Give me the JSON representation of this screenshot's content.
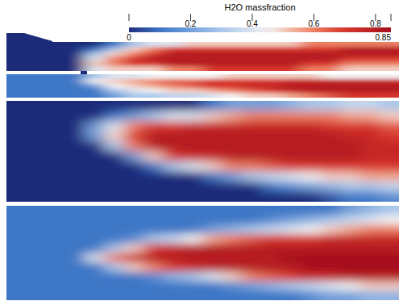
{
  "chart_data": {
    "type": "heatmap",
    "title": "H2O massfraction",
    "tick_labels": false,
    "colorbar_range": [
      0,
      0.85
    ],
    "colorbar_ticks": [
      0,
      0.2,
      0.4,
      0.6,
      0.8,
      0.85
    ],
    "panels": [
      {
        "cells": [
          [
            0,
            0,
            0,
            0,
            0,
            0.1,
            0.3,
            0.4,
            0.4,
            0.5,
            0.5,
            0.5,
            0.5,
            0.5,
            0.5,
            0.6,
            0.6,
            0.6,
            0.6,
            0.6
          ],
          [
            0,
            0,
            0,
            0,
            0.1,
            0.3,
            0.5,
            0.6,
            0.7,
            0.7,
            0.7,
            0.7,
            0.7,
            0.7,
            0.7,
            0.7,
            0.7,
            0.8,
            0.8,
            0.8
          ],
          [
            0,
            0,
            0,
            0,
            0.3,
            0.5,
            0.6,
            0.7,
            0.8,
            0.8,
            0.8,
            0.8,
            0.8,
            0.8,
            0.8,
            0.8,
            0.8,
            0.8,
            0.8,
            0.8
          ],
          [
            0,
            0,
            0,
            0,
            0.4,
            0.6,
            0.7,
            0.8,
            0.8,
            0.8,
            0.8,
            0.8,
            0.8,
            0.8,
            0.8,
            0.8,
            0.8,
            0.7,
            0.7,
            0.7
          ],
          [
            0,
            0,
            0,
            0,
            0.5,
            0.6,
            0.7,
            0.7,
            0.8,
            0.8,
            0.8,
            0.8,
            0.8,
            0.8,
            0.8,
            0.7,
            0.7,
            0.6,
            0.6,
            0.6
          ],
          [
            0,
            0,
            0,
            0,
            0.4,
            0.5,
            0.5,
            0.5,
            0.6,
            0.6,
            0.7,
            0.7,
            0.7,
            0.7,
            0.7,
            0.6,
            0.6,
            0.5,
            0.5,
            0.5
          ]
        ]
      },
      {
        "cells": [
          [
            0.1,
            0.1,
            0.1,
            0.1,
            0.3,
            0.4,
            0.4,
            0.45,
            0.45,
            0.45,
            0.45,
            0.5,
            0.5,
            0.5,
            0.5,
            0.5,
            0.45,
            0.45,
            0.45,
            0.45
          ],
          [
            0.1,
            0.1,
            0.1,
            0.1,
            0.45,
            0.5,
            0.55,
            0.6,
            0.65,
            0.65,
            0.7,
            0.7,
            0.7,
            0.7,
            0.75,
            0.75,
            0.75,
            0.75,
            0.75,
            0.75
          ],
          [
            0.1,
            0.1,
            0.1,
            0.1,
            0.2,
            0.45,
            0.5,
            0.55,
            0.6,
            0.65,
            0.7,
            0.7,
            0.75,
            0.75,
            0.8,
            0.8,
            0.8,
            0.8,
            0.8,
            0.8
          ],
          [
            0.1,
            0.1,
            0.1,
            0.1,
            0.1,
            0.3,
            0.4,
            0.45,
            0.5,
            0.5,
            0.55,
            0.6,
            0.65,
            0.7,
            0.75,
            0.8,
            0.8,
            0.8,
            0.8,
            0.8
          ],
          [
            0.1,
            0.1,
            0.1,
            0.1,
            0.1,
            0.2,
            0.3,
            0.3,
            0.35,
            0.35,
            0.4,
            0.45,
            0.5,
            0.5,
            0.55,
            0.6,
            0.65,
            0.7,
            0.7,
            0.7
          ]
        ]
      },
      {
        "cells": [
          [
            0,
            0,
            0,
            0,
            0,
            0,
            0,
            0,
            0,
            0,
            0.1,
            0.2,
            0.2,
            0.2,
            0.25,
            0.3,
            0.3,
            0.35,
            0.35,
            0.3
          ],
          [
            0,
            0,
            0,
            0,
            0,
            0.1,
            0.2,
            0.3,
            0.4,
            0.4,
            0.5,
            0.55,
            0.6,
            0.6,
            0.6,
            0.6,
            0.6,
            0.55,
            0.55,
            0.5
          ],
          [
            0,
            0,
            0,
            0,
            0.2,
            0.4,
            0.6,
            0.7,
            0.7,
            0.75,
            0.75,
            0.75,
            0.75,
            0.75,
            0.75,
            0.75,
            0.7,
            0.7,
            0.7,
            0.65
          ],
          [
            0,
            0,
            0,
            0,
            0.2,
            0.5,
            0.7,
            0.8,
            0.8,
            0.8,
            0.8,
            0.8,
            0.8,
            0.8,
            0.8,
            0.8,
            0.8,
            0.75,
            0.75,
            0.7
          ],
          [
            0,
            0,
            0,
            0,
            0,
            0.3,
            0.6,
            0.8,
            0.8,
            0.8,
            0.8,
            0.8,
            0.8,
            0.8,
            0.8,
            0.8,
            0.8,
            0.8,
            0.75,
            0.75
          ],
          [
            0,
            0,
            0,
            0,
            0,
            0,
            0.2,
            0.5,
            0.7,
            0.75,
            0.75,
            0.8,
            0.8,
            0.8,
            0.8,
            0.8,
            0.8,
            0.8,
            0.75,
            0.75
          ],
          [
            0,
            0,
            0,
            0,
            0,
            0,
            0,
            0.1,
            0.3,
            0.4,
            0.5,
            0.6,
            0.6,
            0.65,
            0.7,
            0.7,
            0.7,
            0.7,
            0.7,
            0.7
          ],
          [
            0,
            0,
            0,
            0,
            0,
            0,
            0,
            0,
            0,
            0,
            0.1,
            0.2,
            0.3,
            0.35,
            0.4,
            0.45,
            0.5,
            0.5,
            0.55,
            0.55
          ],
          [
            0,
            0,
            0,
            0,
            0,
            0,
            0,
            0,
            0,
            0,
            0,
            0,
            0,
            0.1,
            0.15,
            0.2,
            0.25,
            0.3,
            0.3,
            0.35
          ],
          [
            0,
            0,
            0,
            0,
            0,
            0,
            0,
            0,
            0,
            0,
            0,
            0,
            0,
            0,
            0,
            0,
            0.05,
            0.1,
            0.1,
            0.15
          ]
        ]
      },
      {
        "cells": [
          [
            0.1,
            0.1,
            0.1,
            0.1,
            0.1,
            0.1,
            0.1,
            0.1,
            0.1,
            0.1,
            0.1,
            0.1,
            0.1,
            0.1,
            0.1,
            0.1,
            0.1,
            0.2,
            0.25,
            0.3
          ],
          [
            0.1,
            0.1,
            0.1,
            0.1,
            0.1,
            0.1,
            0.1,
            0.1,
            0.1,
            0.1,
            0.1,
            0.1,
            0.1,
            0.15,
            0.2,
            0.25,
            0.3,
            0.35,
            0.4,
            0.45
          ],
          [
            0.1,
            0.1,
            0.1,
            0.1,
            0.1,
            0.1,
            0.1,
            0.1,
            0.1,
            0.1,
            0.2,
            0.25,
            0.3,
            0.35,
            0.4,
            0.45,
            0.5,
            0.55,
            0.6,
            0.6
          ],
          [
            0.1,
            0.1,
            0.1,
            0.1,
            0.1,
            0.1,
            0.15,
            0.3,
            0.35,
            0.45,
            0.55,
            0.6,
            0.65,
            0.7,
            0.7,
            0.7,
            0.75,
            0.75,
            0.75,
            0.75
          ],
          [
            0.1,
            0.1,
            0.1,
            0.1,
            0.1,
            0.3,
            0.5,
            0.7,
            0.75,
            0.8,
            0.8,
            0.8,
            0.8,
            0.8,
            0.8,
            0.8,
            0.8,
            0.8,
            0.8,
            0.8
          ],
          [
            0.1,
            0.1,
            0.1,
            0.1,
            0.4,
            0.6,
            0.75,
            0.8,
            0.8,
            0.8,
            0.8,
            0.8,
            0.8,
            0.8,
            0.85,
            0.85,
            0.85,
            0.85,
            0.85,
            0.85
          ],
          [
            0.1,
            0.1,
            0.1,
            0.1,
            0.1,
            0.3,
            0.5,
            0.6,
            0.7,
            0.75,
            0.8,
            0.8,
            0.8,
            0.8,
            0.8,
            0.85,
            0.85,
            0.85,
            0.85,
            0.85
          ],
          [
            0.1,
            0.1,
            0.1,
            0.1,
            0.1,
            0.1,
            0.1,
            0.15,
            0.25,
            0.3,
            0.4,
            0.5,
            0.6,
            0.65,
            0.7,
            0.75,
            0.75,
            0.8,
            0.8,
            0.8
          ],
          [
            0.1,
            0.1,
            0.1,
            0.1,
            0.1,
            0.1,
            0.1,
            0.1,
            0.1,
            0.1,
            0.1,
            0.15,
            0.2,
            0.25,
            0.3,
            0.35,
            0.4,
            0.45,
            0.5,
            0.5
          ],
          [
            0.1,
            0.1,
            0.1,
            0.1,
            0.1,
            0.1,
            0.1,
            0.1,
            0.1,
            0.1,
            0.1,
            0.1,
            0.1,
            0.1,
            0.1,
            0.15,
            0.2,
            0.2,
            0.25,
            0.25
          ]
        ]
      }
    ]
  }
}
